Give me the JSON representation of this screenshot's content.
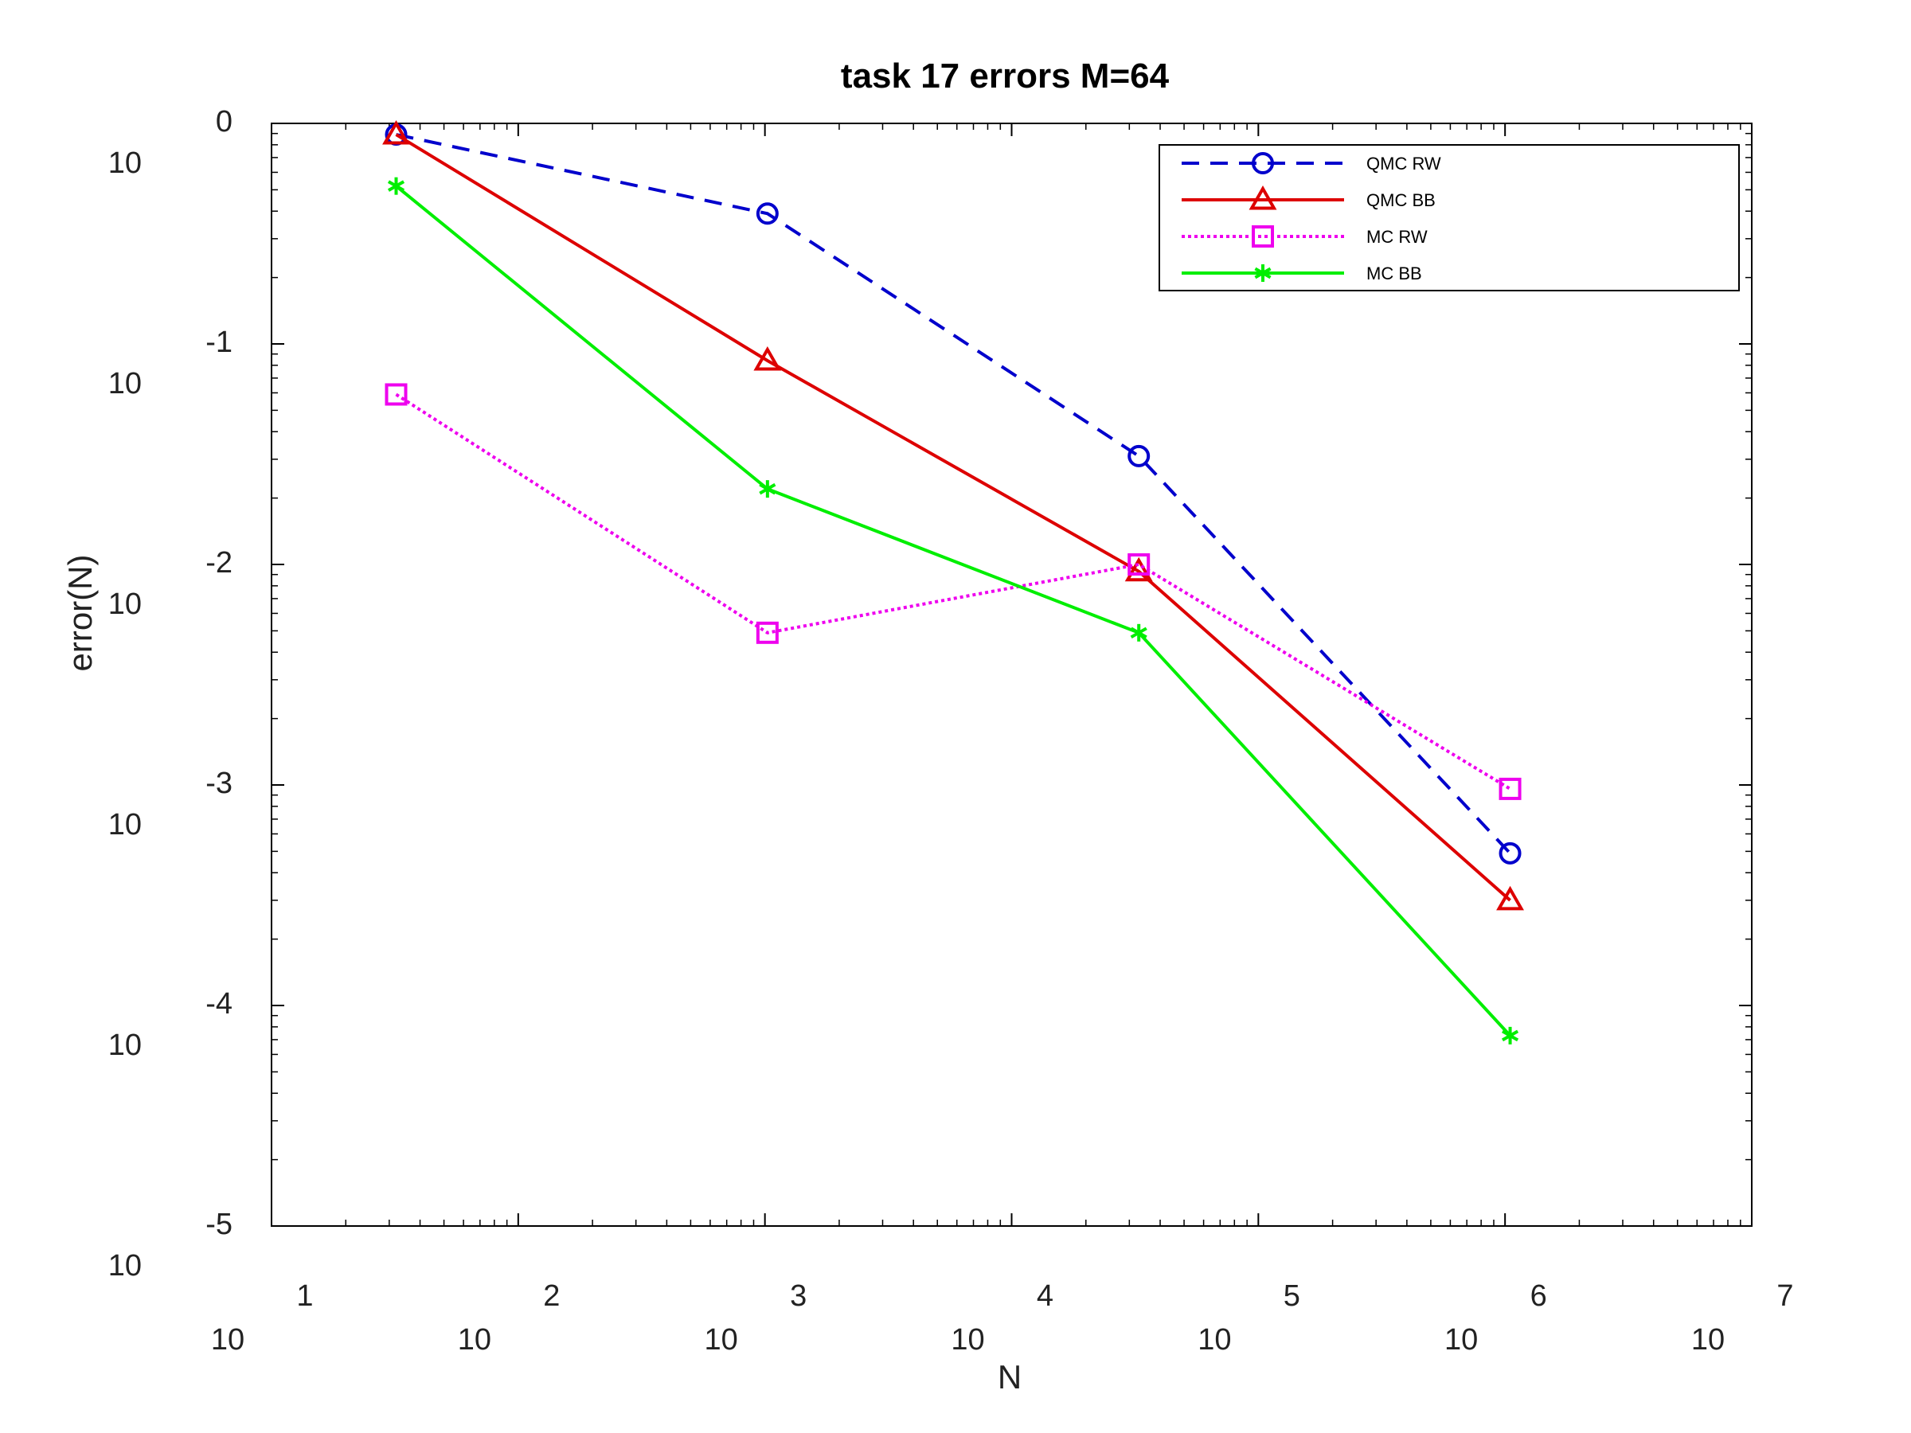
{
  "chart_data": {
    "type": "line",
    "title": "task 17 errors M=64",
    "xlabel": "N",
    "ylabel": "error(N)",
    "xscale": "log",
    "yscale": "log",
    "xlim": [
      10,
      10000000
    ],
    "ylim": [
      1e-05,
      1
    ],
    "grid": false,
    "legend_position": "top-right",
    "x_ticks": [
      {
        "base": "10",
        "exp": "1"
      },
      {
        "base": "10",
        "exp": "2"
      },
      {
        "base": "10",
        "exp": "3"
      },
      {
        "base": "10",
        "exp": "4"
      },
      {
        "base": "10",
        "exp": "5"
      },
      {
        "base": "10",
        "exp": "6"
      },
      {
        "base": "10",
        "exp": "7"
      }
    ],
    "y_ticks": [
      {
        "base": "10",
        "exp": "0"
      },
      {
        "base": "10",
        "exp": "-1"
      },
      {
        "base": "10",
        "exp": "-2"
      },
      {
        "base": "10",
        "exp": "-3"
      },
      {
        "base": "10",
        "exp": "-4"
      },
      {
        "base": "10",
        "exp": "-5"
      }
    ],
    "x": [
      32,
      1024,
      32768,
      1048576
    ],
    "series": [
      {
        "name": "QMC RW",
        "color": "#0000cc",
        "dash": "dashed",
        "marker": "circle",
        "values": [
          0.89,
          0.39,
          0.031,
          0.00049
        ]
      },
      {
        "name": "QMC BB",
        "color": "#dd0000",
        "dash": "solid",
        "marker": "triangle",
        "values": [
          0.89,
          0.084,
          0.0093,
          0.0003
        ]
      },
      {
        "name": "MC RW",
        "color": "#ee00ee",
        "dash": "dotted",
        "marker": "square",
        "values": [
          0.059,
          0.0049,
          0.01,
          0.00096
        ]
      },
      {
        "name": "MC BB",
        "color": "#00ee00",
        "dash": "solid",
        "marker": "asterisk",
        "values": [
          0.52,
          0.022,
          0.0049,
          7.3e-05
        ]
      }
    ]
  }
}
